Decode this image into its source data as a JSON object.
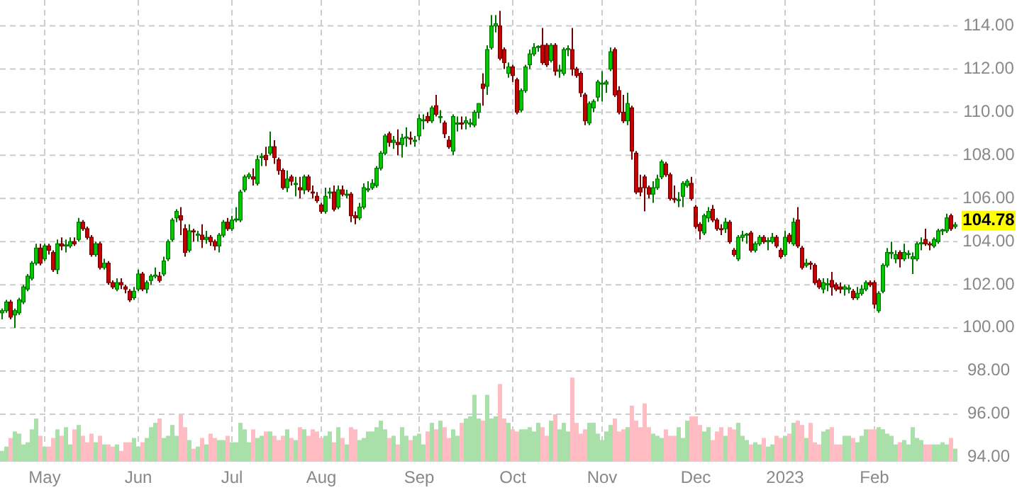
{
  "chart_data": {
    "type": "candlestick",
    "categories": [
      null,
      null,
      null,
      null,
      null,
      null,
      null,
      null,
      null,
      null,
      "May",
      null,
      null,
      null,
      null,
      null,
      null,
      null,
      null,
      null,
      null,
      null,
      null,
      null,
      null,
      null,
      null,
      null,
      null,
      null,
      null,
      null,
      "Jun",
      null,
      null,
      null,
      null,
      null,
      null,
      null,
      null,
      null,
      null,
      null,
      null,
      null,
      null,
      null,
      null,
      null,
      null,
      null,
      null,
      null,
      "Jul",
      null,
      null,
      null,
      null,
      null,
      null,
      null,
      null,
      null,
      null,
      null,
      null,
      null,
      null,
      null,
      null,
      null,
      null,
      null,
      null,
      "Aug",
      null,
      null,
      null,
      null,
      null,
      null,
      null,
      null,
      null,
      null,
      null,
      null,
      null,
      null,
      null,
      null,
      null,
      null,
      null,
      null,
      null,
      null,
      "Sep",
      null,
      null,
      null,
      null,
      null,
      null,
      null,
      null,
      null,
      null,
      null,
      null,
      null,
      null,
      null,
      null,
      null,
      null,
      null,
      null,
      null,
      "Oct",
      null,
      null,
      null,
      null,
      null,
      null,
      null,
      null,
      null,
      null,
      null,
      null,
      null,
      null,
      null,
      null,
      null,
      null,
      null,
      null,
      "Nov",
      null,
      null,
      null,
      null,
      null,
      null,
      null,
      null,
      null,
      null,
      null,
      null,
      null,
      null,
      null,
      null,
      null,
      null,
      null,
      null,
      null,
      "Dec",
      null,
      null,
      null,
      null,
      null,
      null,
      null,
      null,
      null,
      null,
      null,
      null,
      null,
      null,
      null,
      null,
      null,
      null,
      null,
      null,
      "2023",
      null,
      null,
      null,
      null,
      null,
      null,
      null,
      null,
      null,
      null,
      null,
      null,
      null,
      null,
      null,
      null,
      null,
      null,
      null,
      null,
      "Feb",
      null,
      null,
      null,
      null,
      null,
      null,
      null,
      null,
      null,
      null,
      null,
      null,
      null,
      null,
      null,
      null,
      null,
      null,
      null
    ],
    "ohlc": [
      [
        100.7,
        100.9,
        100.4,
        100.8
      ],
      [
        100.8,
        101.3,
        100.7,
        101.2
      ],
      [
        101.2,
        101.3,
        100.4,
        100.5
      ],
      [
        100.6,
        100.9,
        100.0,
        100.8
      ],
      [
        100.7,
        101.4,
        100.6,
        101.3
      ],
      [
        101.2,
        102.0,
        101.1,
        101.9
      ],
      [
        101.8,
        102.5,
        101.7,
        102.4
      ],
      [
        102.3,
        103.1,
        102.2,
        103.0
      ],
      [
        103.0,
        103.9,
        102.9,
        103.7
      ],
      [
        103.7,
        103.9,
        102.9,
        103.0
      ],
      [
        103.2,
        103.9,
        103.1,
        103.8
      ],
      [
        103.8,
        103.9,
        103.4,
        103.6
      ],
      [
        103.5,
        103.6,
        102.6,
        102.7
      ],
      [
        102.7,
        104.1,
        102.5,
        103.9
      ],
      [
        103.9,
        104.2,
        103.6,
        103.8
      ],
      [
        103.8,
        104.1,
        103.5,
        103.85
      ],
      [
        103.8,
        104.2,
        103.7,
        104.0
      ],
      [
        104.0,
        104.2,
        103.8,
        103.9
      ],
      [
        104.1,
        105.1,
        104.0,
        104.9
      ],
      [
        104.9,
        105.0,
        104.5,
        104.6
      ],
      [
        104.6,
        104.7,
        104.1,
        104.2
      ],
      [
        104.2,
        104.3,
        103.3,
        103.4
      ],
      [
        103.4,
        104.0,
        103.3,
        103.9
      ],
      [
        103.9,
        104.0,
        102.7,
        102.8
      ],
      [
        102.8,
        103.2,
        102.7,
        103.0
      ],
      [
        103.0,
        103.1,
        102.0,
        102.1
      ],
      [
        102.1,
        102.2,
        101.8,
        101.9
      ],
      [
        101.8,
        102.3,
        101.7,
        102.1
      ],
      [
        102.1,
        102.3,
        101.8,
        102.0
      ],
      [
        101.9,
        102.0,
        101.6,
        101.8
      ],
      [
        101.7,
        101.8,
        101.2,
        101.3
      ],
      [
        101.4,
        101.9,
        101.3,
        101.7
      ],
      [
        101.8,
        102.7,
        101.7,
        102.5
      ],
      [
        102.5,
        102.6,
        101.7,
        101.8
      ],
      [
        101.8,
        102.2,
        101.6,
        102.1
      ],
      [
        102.2,
        102.5,
        102.0,
        102.4
      ],
      [
        102.4,
        102.8,
        102.3,
        102.45
      ],
      [
        102.4,
        102.6,
        102.1,
        102.2
      ],
      [
        102.5,
        103.3,
        102.4,
        103.1
      ],
      [
        103.2,
        104.1,
        103.1,
        104.0
      ],
      [
        104.1,
        105.1,
        104.0,
        105.0
      ],
      [
        105.1,
        105.5,
        104.9,
        105.4
      ],
      [
        105.2,
        105.6,
        104.3,
        105.0
      ],
      [
        104.6,
        104.8,
        103.3,
        103.5
      ],
      [
        103.6,
        104.8,
        103.5,
        104.5
      ],
      [
        104.5,
        104.6,
        104.0,
        104.45
      ],
      [
        104.3,
        104.5,
        104.0,
        104.35
      ],
      [
        104.3,
        104.8,
        103.7,
        104.1
      ],
      [
        104.1,
        104.5,
        103.9,
        104.2
      ],
      [
        104.2,
        104.3,
        103.8,
        104.0
      ],
      [
        104.0,
        104.1,
        103.6,
        103.8
      ],
      [
        103.8,
        104.4,
        103.5,
        104.3
      ],
      [
        104.3,
        105.0,
        104.2,
        104.9
      ],
      [
        104.9,
        105.1,
        104.5,
        104.6
      ],
      [
        104.6,
        105.2,
        104.5,
        105.0
      ],
      [
        105.0,
        105.6,
        104.9,
        105.05
      ],
      [
        105.0,
        106.4,
        104.9,
        106.3
      ],
      [
        106.4,
        107.1,
        106.3,
        107.0
      ],
      [
        107.0,
        107.2,
        106.9,
        107.1
      ],
      [
        107.0,
        107.4,
        106.6,
        106.9
      ],
      [
        106.7,
        108.0,
        106.6,
        107.8
      ],
      [
        107.9,
        108.1,
        107.5,
        107.95
      ],
      [
        108.0,
        108.4,
        107.5,
        107.8
      ],
      [
        108.1,
        109.1,
        108.0,
        108.4
      ],
      [
        108.4,
        108.7,
        107.6,
        107.9
      ],
      [
        107.8,
        107.9,
        107.1,
        107.3
      ],
      [
        107.3,
        107.4,
        106.4,
        106.5
      ],
      [
        106.5,
        107.3,
        106.3,
        106.9
      ],
      [
        107.0,
        107.1,
        106.6,
        106.8
      ],
      [
        106.7,
        107.0,
        106.1,
        106.7
      ],
      [
        106.5,
        107.0,
        106.0,
        106.4
      ],
      [
        106.4,
        107.1,
        106.2,
        107.0
      ],
      [
        107.0,
        107.1,
        106.3,
        106.4
      ],
      [
        106.3,
        106.6,
        106.0,
        106.25
      ],
      [
        106.1,
        106.3,
        105.8,
        105.9
      ],
      [
        105.7,
        105.8,
        105.3,
        105.4
      ],
      [
        105.4,
        106.5,
        105.3,
        106.1
      ],
      [
        106.3,
        106.5,
        106.0,
        106.3
      ],
      [
        106.3,
        106.6,
        105.4,
        105.5
      ],
      [
        105.6,
        106.6,
        105.5,
        106.4
      ],
      [
        106.4,
        106.6,
        106.1,
        106.2
      ],
      [
        106.2,
        106.4,
        106.0,
        106.2
      ],
      [
        106.2,
        106.3,
        104.9,
        105.2
      ],
      [
        105.2,
        105.4,
        104.8,
        105.1
      ],
      [
        105.1,
        105.8,
        105.0,
        105.6
      ],
      [
        105.6,
        106.7,
        105.5,
        106.5
      ],
      [
        106.4,
        106.8,
        106.3,
        106.45
      ],
      [
        106.5,
        106.9,
        106.4,
        106.7
      ],
      [
        106.6,
        107.5,
        106.5,
        107.4
      ],
      [
        107.4,
        108.2,
        107.3,
        108.1
      ],
      [
        108.1,
        109.0,
        108.0,
        108.9
      ],
      [
        109.0,
        109.1,
        108.4,
        108.6
      ],
      [
        108.6,
        108.9,
        108.3,
        108.7
      ],
      [
        108.6,
        109.2,
        108.0,
        108.5
      ],
      [
        108.5,
        109.0,
        107.9,
        108.8
      ],
      [
        108.8,
        109.3,
        108.4,
        108.85
      ],
      [
        108.8,
        109.1,
        108.5,
        108.75
      ],
      [
        108.7,
        108.9,
        108.4,
        108.7
      ],
      [
        108.9,
        109.9,
        108.7,
        109.7
      ],
      [
        109.6,
        109.9,
        109.2,
        109.65
      ],
      [
        109.8,
        110.0,
        109.5,
        109.6
      ],
      [
        109.6,
        110.3,
        109.5,
        110.2
      ],
      [
        110.3,
        110.8,
        109.8,
        109.9
      ],
      [
        109.8,
        110.1,
        109.5,
        109.8
      ],
      [
        109.5,
        109.6,
        108.8,
        109.0
      ],
      [
        108.7,
        108.9,
        108.3,
        108.4
      ],
      [
        108.2,
        109.9,
        108.0,
        109.8
      ],
      [
        109.5,
        109.8,
        109.1,
        109.5
      ],
      [
        109.5,
        109.8,
        109.2,
        109.45
      ],
      [
        109.5,
        109.8,
        109.2,
        109.6
      ],
      [
        109.5,
        109.7,
        109.3,
        109.5
      ],
      [
        109.4,
        110.1,
        109.3,
        110.0
      ],
      [
        110.0,
        110.4,
        109.7,
        110.4
      ],
      [
        111.3,
        111.8,
        110.3,
        111.1
      ],
      [
        111.2,
        113.1,
        110.8,
        112.9
      ],
      [
        113.0,
        114.5,
        112.9,
        114.0
      ],
      [
        114.0,
        114.5,
        113.7,
        114.1
      ],
      [
        114.0,
        114.7,
        112.4,
        112.5
      ],
      [
        112.9,
        113.0,
        112.0,
        112.3
      ],
      [
        111.8,
        112.3,
        111.6,
        112.1
      ],
      [
        112.1,
        112.2,
        111.4,
        111.7
      ],
      [
        111.5,
        111.6,
        109.9,
        110.0
      ],
      [
        110.1,
        111.1,
        110.0,
        111.0
      ],
      [
        111.0,
        112.2,
        110.9,
        112.1
      ],
      [
        112.2,
        112.9,
        112.0,
        112.7
      ],
      [
        112.7,
        113.2,
        112.6,
        113.0
      ],
      [
        113.0,
        113.1,
        112.8,
        113.05
      ],
      [
        113.1,
        113.9,
        112.2,
        112.3
      ],
      [
        113.1,
        113.2,
        112.1,
        112.2
      ],
      [
        112.4,
        113.2,
        112.3,
        113.1
      ],
      [
        113.1,
        113.2,
        111.7,
        111.9
      ],
      [
        111.9,
        112.2,
        111.6,
        111.95
      ],
      [
        111.8,
        113.0,
        111.7,
        112.9
      ],
      [
        112.9,
        113.1,
        112.6,
        112.95
      ],
      [
        112.9,
        113.9,
        111.7,
        112.0
      ],
      [
        112.0,
        112.1,
        111.6,
        111.7
      ],
      [
        111.8,
        111.9,
        110.7,
        110.9
      ],
      [
        110.8,
        110.9,
        109.4,
        109.6
      ],
      [
        109.5,
        110.5,
        109.4,
        110.4
      ],
      [
        110.2,
        110.6,
        110.0,
        110.5
      ],
      [
        110.7,
        111.5,
        110.5,
        111.4
      ],
      [
        111.3,
        111.9,
        110.5,
        111.35
      ],
      [
        111.3,
        111.5,
        110.9,
        111.4
      ],
      [
        112.0,
        113.0,
        111.9,
        112.8
      ],
      [
        112.9,
        113.0,
        110.7,
        110.8
      ],
      [
        111.0,
        111.2,
        109.9,
        110.0
      ],
      [
        110.0,
        110.8,
        109.5,
        109.6
      ],
      [
        109.6,
        110.9,
        109.4,
        110.4
      ],
      [
        110.2,
        110.3,
        107.8,
        108.2
      ],
      [
        108.1,
        108.2,
        106.2,
        106.3
      ],
      [
        106.5,
        107.1,
        106.1,
        106.3
      ],
      [
        107.0,
        107.1,
        105.4,
        106.5
      ],
      [
        106.5,
        106.6,
        106.0,
        106.2
      ],
      [
        106.2,
        106.8,
        105.8,
        106.5
      ],
      [
        106.5,
        107.1,
        106.4,
        106.9
      ],
      [
        107.0,
        107.8,
        106.9,
        107.7
      ],
      [
        107.6,
        107.7,
        107.0,
        107.1
      ],
      [
        107.1,
        107.2,
        105.9,
        106.0
      ],
      [
        106.0,
        106.6,
        105.8,
        105.95
      ],
      [
        105.9,
        106.3,
        105.6,
        105.95
      ],
      [
        106.1,
        106.8,
        105.6,
        106.7
      ],
      [
        106.6,
        106.9,
        106.5,
        106.8
      ],
      [
        106.7,
        107.0,
        105.9,
        106.0
      ],
      [
        105.6,
        105.7,
        104.6,
        104.7
      ],
      [
        104.8,
        104.9,
        104.1,
        104.5
      ],
      [
        104.4,
        105.3,
        104.3,
        105.2
      ],
      [
        105.1,
        105.6,
        104.9,
        105.4
      ],
      [
        105.5,
        105.7,
        104.9,
        105.0
      ],
      [
        105.0,
        105.1,
        104.5,
        104.6
      ],
      [
        104.6,
        104.8,
        104.3,
        104.55
      ],
      [
        104.6,
        105.1,
        104.4,
        104.9
      ],
      [
        104.9,
        105.0,
        103.9,
        104.0
      ],
      [
        103.6,
        103.7,
        103.3,
        103.4
      ],
      [
        103.2,
        104.3,
        103.1,
        104.2
      ],
      [
        104.2,
        104.5,
        104.0,
        104.3
      ],
      [
        104.3,
        104.4,
        103.9,
        104.35
      ],
      [
        104.4,
        104.5,
        103.5,
        103.6
      ],
      [
        103.6,
        104.0,
        103.5,
        103.9
      ],
      [
        103.9,
        104.3,
        103.8,
        104.2
      ],
      [
        104.2,
        104.3,
        103.9,
        104.0
      ],
      [
        104.0,
        104.2,
        103.6,
        104.05
      ],
      [
        104.0,
        104.4,
        103.9,
        104.2
      ],
      [
        104.2,
        104.3,
        103.7,
        103.8
      ],
      [
        103.6,
        103.7,
        103.2,
        103.3
      ],
      [
        103.4,
        104.5,
        103.3,
        104.2
      ],
      [
        104.3,
        104.4,
        103.9,
        104.0
      ],
      [
        103.9,
        105.1,
        103.8,
        104.9
      ],
      [
        105.0,
        105.6,
        103.7,
        103.8
      ],
      [
        103.7,
        103.8,
        102.7,
        102.8
      ],
      [
        102.9,
        103.2,
        102.8,
        103.0
      ],
      [
        103.0,
        103.1,
        102.7,
        102.95
      ],
      [
        102.9,
        103.0,
        102.0,
        102.1
      ],
      [
        102.2,
        102.3,
        101.8,
        101.9
      ],
      [
        101.8,
        102.3,
        101.6,
        102.1
      ],
      [
        102.0,
        102.3,
        101.7,
        102.05
      ],
      [
        102.2,
        102.6,
        101.5,
        101.9
      ],
      [
        102.0,
        102.1,
        101.7,
        101.8
      ],
      [
        101.9,
        102.1,
        101.6,
        101.8
      ],
      [
        101.8,
        102.0,
        101.5,
        101.9
      ],
      [
        101.8,
        102.0,
        101.6,
        101.85
      ],
      [
        101.7,
        101.8,
        101.3,
        101.4
      ],
      [
        101.4,
        101.9,
        101.3,
        101.6
      ],
      [
        101.6,
        102.0,
        101.5,
        101.8
      ],
      [
        101.8,
        102.2,
        101.7,
        102.1
      ],
      [
        102.1,
        102.2,
        101.9,
        102.0
      ],
      [
        102.1,
        102.2,
        100.9,
        101.1
      ],
      [
        100.8,
        101.7,
        100.7,
        101.6
      ],
      [
        101.7,
        103.0,
        101.6,
        102.9
      ],
      [
        102.9,
        103.7,
        102.8,
        103.5
      ],
      [
        103.5,
        104.0,
        103.2,
        103.5
      ],
      [
        103.2,
        103.6,
        103.0,
        103.4
      ],
      [
        103.5,
        103.6,
        102.8,
        103.2
      ],
      [
        103.2,
        103.9,
        103.1,
        103.5
      ],
      [
        103.4,
        103.6,
        103.2,
        103.45
      ],
      [
        103.2,
        103.5,
        102.5,
        103.3
      ],
      [
        103.2,
        104.0,
        103.1,
        103.9
      ],
      [
        103.9,
        104.2,
        103.6,
        103.95
      ],
      [
        104.1,
        104.6,
        103.8,
        103.9
      ],
      [
        103.9,
        104.0,
        103.6,
        103.85
      ],
      [
        103.8,
        104.2,
        103.7,
        104.1
      ],
      [
        104.0,
        104.6,
        103.9,
        104.5
      ],
      [
        104.5,
        104.6,
        104.3,
        104.55
      ],
      [
        104.5,
        105.3,
        104.4,
        105.1
      ],
      [
        105.2,
        105.3,
        104.5,
        104.6
      ],
      [
        104.7,
        104.9,
        104.6,
        104.78
      ]
    ],
    "colors": [
      "#00cc00",
      "#00cc00",
      "#cc0000",
      "#00cc00",
      "#00cc00",
      "#00cc00",
      "#00cc00",
      "#00cc00",
      "#00cc00",
      "#cc0000",
      "#00cc00",
      "#cc0000",
      "#cc0000",
      "#00cc00",
      "#cc0000",
      "#00cc00",
      "#00cc00",
      "#cc0000",
      "#00cc00",
      "#cc0000",
      "#cc0000",
      "#cc0000",
      "#00cc00",
      "#cc0000",
      "#00cc00",
      "#cc0000",
      "#cc0000",
      "#00cc00",
      "#cc0000",
      "#cc0000",
      "#cc0000",
      "#00cc00",
      "#00cc00",
      "#cc0000",
      "#00cc00",
      "#00cc00",
      "#00cc00",
      "#cc0000",
      "#00cc00",
      "#00cc00",
      "#00cc00",
      "#00cc00",
      "#cc0000",
      "#cc0000",
      "#00cc00",
      "#cc0000",
      "#00cc00",
      "#cc0000",
      "#00cc00",
      "#cc0000",
      "#cc0000",
      "#00cc00",
      "#00cc00",
      "#cc0000",
      "#00cc00",
      "#00cc00",
      "#00cc00",
      "#00cc00",
      "#00cc00",
      "#cc0000",
      "#00cc00",
      "#00cc00",
      "#cc0000",
      "#00cc00",
      "#cc0000",
      "#cc0000",
      "#cc0000",
      "#00cc00",
      "#cc0000",
      "#00cc00",
      "#cc0000",
      "#00cc00",
      "#cc0000",
      "#cc0000",
      "#cc0000",
      "#cc0000",
      "#00cc00",
      "#00cc00",
      "#cc0000",
      "#00cc00",
      "#cc0000",
      "#00cc00",
      "#cc0000",
      "#cc0000",
      "#00cc00",
      "#00cc00",
      "#00cc00",
      "#00cc00",
      "#00cc00",
      "#00cc00",
      "#00cc00",
      "#cc0000",
      "#00cc00",
      "#cc0000",
      "#00cc00",
      "#00cc00",
      "#cc0000",
      "#00cc00",
      "#00cc00",
      "#00cc00",
      "#cc0000",
      "#00cc00",
      "#cc0000",
      "#00cc00",
      "#cc0000",
      "#cc0000",
      "#00cc00",
      "#00cc00",
      "#cc0000",
      "#00cc00",
      "#00cc00",
      "#00cc00",
      "#00cc00",
      "#cc0000",
      "#00cc00",
      "#00cc00",
      "#00cc00",
      "#cc0000",
      "#cc0000",
      "#00cc00",
      "#cc0000",
      "#cc0000",
      "#00cc00",
      "#00cc00",
      "#00cc00",
      "#00cc00",
      "#00cc00",
      "#cc0000",
      "#cc0000",
      "#00cc00",
      "#cc0000",
      "#00cc00",
      "#00cc00",
      "#00cc00",
      "#cc0000",
      "#cc0000",
      "#cc0000",
      "#cc0000",
      "#00cc00",
      "#00cc00",
      "#00cc00",
      "#00cc00",
      "#00cc00",
      "#00cc00",
      "#cc0000",
      "#cc0000",
      "#cc0000",
      "#00cc00",
      "#cc0000",
      "#cc0000",
      "#cc0000",
      "#cc0000",
      "#cc0000",
      "#00cc00",
      "#00cc00",
      "#00cc00",
      "#cc0000",
      "#cc0000",
      "#cc0000",
      "#00cc00",
      "#00cc00",
      "#00cc00",
      "#cc0000",
      "#cc0000",
      "#cc0000",
      "#00cc00",
      "#00cc00",
      "#cc0000",
      "#cc0000",
      "#cc0000",
      "#00cc00",
      "#cc0000",
      "#cc0000",
      "#00cc00",
      "#00cc00",
      "#00cc00",
      "#cc0000",
      "#00cc00",
      "#00cc00",
      "#cc0000",
      "#00cc00",
      "#00cc00",
      "#cc0000",
      "#cc0000",
      "#00cc00",
      "#cc0000",
      "#00cc00",
      "#cc0000",
      "#cc0000",
      "#00cc00",
      "#cc0000",
      "#cc0000",
      "#cc0000",
      "#00cc00",
      "#00cc00",
      "#cc0000",
      "#cc0000",
      "#cc0000",
      "#00cc00",
      "#00cc00",
      "#cc0000",
      "#00cc00",
      "#00cc00",
      "#00cc00",
      "#cc0000",
      "#cc0000",
      "#00cc00",
      "#00cc00",
      "#00cc00",
      "#00cc00",
      "#00cc00",
      "#cc0000",
      "#00cc00",
      "#00cc00",
      "#00cc00",
      "#00cc00",
      "#00cc00",
      "#cc0000",
      "#cc0000",
      "#00cc00",
      "#00cc00",
      "#00cc00",
      "#00cc00",
      "#cc0000",
      "#00cc00"
    ],
    "ylim": [
      93.8,
      115.2
    ],
    "yticks": [
      {
        "value": 94,
        "label": "94.00"
      },
      {
        "value": 96,
        "label": "96.00"
      },
      {
        "value": 98,
        "label": "98.00"
      },
      {
        "value": 100,
        "label": "100.00"
      },
      {
        "value": 102,
        "label": "102.00"
      },
      {
        "value": 104,
        "label": "104.00"
      },
      {
        "value": 106,
        "label": "106.00"
      },
      {
        "value": 108,
        "label": "108.00"
      },
      {
        "value": 110,
        "label": "110.00"
      },
      {
        "value": 112,
        "label": "112.00"
      },
      {
        "value": 114,
        "label": "114.00"
      }
    ],
    "grid": true,
    "annotations": [
      "104.78"
    ],
    "series": [
      {
        "type": "bar",
        "values": [
          94.3,
          94.5,
          94.9,
          95.2,
          95.1,
          94.6,
          94.7,
          95.3,
          95.8,
          95.0,
          94.5,
          94.5,
          94.9,
          95.3,
          95.0,
          95.4,
          94.6,
          95.3,
          95.5,
          95.0,
          94.7,
          95.1,
          94.7,
          95.0,
          94.6,
          94.6,
          94.5,
          94.6,
          94.3,
          94.7,
          94.7,
          94.9,
          94.5,
          94.7,
          94.9,
          95.4,
          95.6,
          95.8,
          94.9,
          95.0,
          95.5,
          95.0,
          96.0,
          95.4,
          94.8,
          94.4,
          94.5,
          94.9,
          94.6,
          95.1,
          94.9,
          94.8,
          94.8,
          95.0,
          94.7,
          94.7,
          95.6,
          95.3,
          94.7,
          95.3,
          94.9,
          95.0,
          95.2,
          95.2,
          95.0,
          94.8,
          95.0,
          95.3,
          94.9,
          94.8,
          95.4,
          95.3,
          95.0,
          95.3,
          95.2,
          94.9,
          95.0,
          95.2,
          94.7,
          95.4,
          94.9,
          94.6,
          95.4,
          95.3,
          94.8,
          94.9,
          95.2,
          95.2,
          95.4,
          95.7,
          95.3,
          94.9,
          95.0,
          94.6,
          95.4,
          95.0,
          94.8,
          95.0,
          95.1,
          94.6,
          95.2,
          95.6,
          95.3,
          95.7,
          95.4,
          94.9,
          95.3,
          95.0,
          95.6,
          95.8,
          95.9,
          96.9,
          95.8,
          95.7,
          96.9,
          95.8,
          95.9,
          97.4,
          95.8,
          95.6,
          95.3,
          95.2,
          95.3,
          95.3,
          95.4,
          95.2,
          95.6,
          95.4,
          95.0,
          95.7,
          96.0,
          95.3,
          95.6,
          95.2,
          97.7,
          95.6,
          95.1,
          95.3,
          95.6,
          95.6,
          95.1,
          94.8,
          95.2,
          95.5,
          95.8,
          95.2,
          95.3,
          95.4,
          96.4,
          95.7,
          95.4,
          96.5,
          95.4,
          95.1,
          95.0,
          94.9,
          95.3,
          95.0,
          95.0,
          95.4,
          94.9,
          95.7,
          95.9,
          95.9,
          95.5,
          95.2,
          95.4,
          94.8,
          95.2,
          95.4,
          95.0,
          95.4,
          95.3,
          95.6,
          95.0,
          94.8,
          94.6,
          94.7,
          94.6,
          94.9,
          94.5,
          94.6,
          95.0,
          94.9,
          95.0,
          95.1,
          95.6,
          95.7,
          95.5,
          94.9,
          95.6,
          94.7,
          94.6,
          95.2,
          95.3,
          95.4,
          94.6,
          94.6,
          95.0,
          95.0,
          94.9,
          94.7,
          95.0,
          95.3,
          95.3,
          95.3,
          95.4,
          95.3,
          95.1,
          95.0,
          94.6,
          94.7,
          94.8,
          94.6,
          95.4,
          94.9,
          94.8,
          94.6,
          94.6,
          94.6,
          94.6,
          94.7,
          94.6,
          94.9,
          94.4
        ],
        "colors": [
          "#a9dfa9",
          "#a9dfa9",
          "#ffbcc2",
          "#a9dfa9",
          "#a9dfa9",
          "#a9dfa9",
          "#a9dfa9",
          "#a9dfa9",
          "#a9dfa9",
          "#ffbcc2",
          "#a9dfa9",
          "#ffbcc2",
          "#ffbcc2",
          "#a9dfa9",
          "#ffbcc2",
          "#a9dfa9",
          "#a9dfa9",
          "#ffbcc2",
          "#a9dfa9",
          "#ffbcc2",
          "#ffbcc2",
          "#ffbcc2",
          "#a9dfa9",
          "#ffbcc2",
          "#a9dfa9",
          "#ffbcc2",
          "#ffbcc2",
          "#a9dfa9",
          "#ffbcc2",
          "#ffbcc2",
          "#ffbcc2",
          "#a9dfa9",
          "#a9dfa9",
          "#ffbcc2",
          "#a9dfa9",
          "#a9dfa9",
          "#a9dfa9",
          "#ffbcc2",
          "#a9dfa9",
          "#a9dfa9",
          "#a9dfa9",
          "#a9dfa9",
          "#ffbcc2",
          "#ffbcc2",
          "#a9dfa9",
          "#ffbcc2",
          "#a9dfa9",
          "#ffbcc2",
          "#a9dfa9",
          "#ffbcc2",
          "#ffbcc2",
          "#a9dfa9",
          "#a9dfa9",
          "#ffbcc2",
          "#a9dfa9",
          "#a9dfa9",
          "#a9dfa9",
          "#a9dfa9",
          "#a9dfa9",
          "#ffbcc2",
          "#a9dfa9",
          "#a9dfa9",
          "#ffbcc2",
          "#a9dfa9",
          "#ffbcc2",
          "#ffbcc2",
          "#ffbcc2",
          "#a9dfa9",
          "#ffbcc2",
          "#a9dfa9",
          "#ffbcc2",
          "#a9dfa9",
          "#ffbcc2",
          "#ffbcc2",
          "#ffbcc2",
          "#ffbcc2",
          "#a9dfa9",
          "#a9dfa9",
          "#ffbcc2",
          "#a9dfa9",
          "#ffbcc2",
          "#a9dfa9",
          "#ffbcc2",
          "#ffbcc2",
          "#a9dfa9",
          "#a9dfa9",
          "#a9dfa9",
          "#a9dfa9",
          "#a9dfa9",
          "#a9dfa9",
          "#a9dfa9",
          "#ffbcc2",
          "#a9dfa9",
          "#ffbcc2",
          "#a9dfa9",
          "#a9dfa9",
          "#ffbcc2",
          "#a9dfa9",
          "#a9dfa9",
          "#a9dfa9",
          "#ffbcc2",
          "#a9dfa9",
          "#ffbcc2",
          "#a9dfa9",
          "#ffbcc2",
          "#ffbcc2",
          "#a9dfa9",
          "#a9dfa9",
          "#ffbcc2",
          "#a9dfa9",
          "#a9dfa9",
          "#a9dfa9",
          "#a9dfa9",
          "#ffbcc2",
          "#a9dfa9",
          "#a9dfa9",
          "#a9dfa9",
          "#ffbcc2",
          "#ffbcc2",
          "#a9dfa9",
          "#ffbcc2",
          "#ffbcc2",
          "#a9dfa9",
          "#a9dfa9",
          "#a9dfa9",
          "#a9dfa9",
          "#a9dfa9",
          "#ffbcc2",
          "#ffbcc2",
          "#a9dfa9",
          "#ffbcc2",
          "#a9dfa9",
          "#a9dfa9",
          "#a9dfa9",
          "#ffbcc2",
          "#ffbcc2",
          "#ffbcc2",
          "#ffbcc2",
          "#a9dfa9",
          "#a9dfa9",
          "#a9dfa9",
          "#a9dfa9",
          "#a9dfa9",
          "#a9dfa9",
          "#ffbcc2",
          "#ffbcc2",
          "#ffbcc2",
          "#a9dfa9",
          "#ffbcc2",
          "#ffbcc2",
          "#ffbcc2",
          "#ffbcc2",
          "#ffbcc2",
          "#a9dfa9",
          "#a9dfa9",
          "#a9dfa9",
          "#ffbcc2",
          "#ffbcc2",
          "#ffbcc2",
          "#a9dfa9",
          "#a9dfa9",
          "#a9dfa9",
          "#ffbcc2",
          "#ffbcc2",
          "#ffbcc2",
          "#a9dfa9",
          "#a9dfa9",
          "#ffbcc2",
          "#ffbcc2",
          "#ffbcc2",
          "#a9dfa9",
          "#ffbcc2",
          "#ffbcc2",
          "#a9dfa9",
          "#a9dfa9",
          "#a9dfa9",
          "#ffbcc2",
          "#a9dfa9",
          "#a9dfa9",
          "#ffbcc2",
          "#a9dfa9",
          "#a9dfa9",
          "#ffbcc2",
          "#ffbcc2",
          "#a9dfa9",
          "#ffbcc2",
          "#a9dfa9",
          "#ffbcc2",
          "#ffbcc2",
          "#a9dfa9",
          "#ffbcc2",
          "#ffbcc2",
          "#ffbcc2",
          "#a9dfa9",
          "#a9dfa9",
          "#ffbcc2",
          "#ffbcc2",
          "#ffbcc2",
          "#a9dfa9",
          "#a9dfa9",
          "#ffbcc2",
          "#a9dfa9",
          "#a9dfa9",
          "#a9dfa9",
          "#ffbcc2",
          "#ffbcc2",
          "#a9dfa9",
          "#a9dfa9",
          "#a9dfa9",
          "#a9dfa9",
          "#a9dfa9",
          "#ffbcc2",
          "#a9dfa9",
          "#a9dfa9",
          "#a9dfa9",
          "#a9dfa9",
          "#a9dfa9",
          "#ffbcc2",
          "#ffbcc2",
          "#a9dfa9",
          "#a9dfa9",
          "#a9dfa9",
          "#a9dfa9",
          "#ffbcc2",
          "#a9dfa9"
        ]
      }
    ]
  }
}
